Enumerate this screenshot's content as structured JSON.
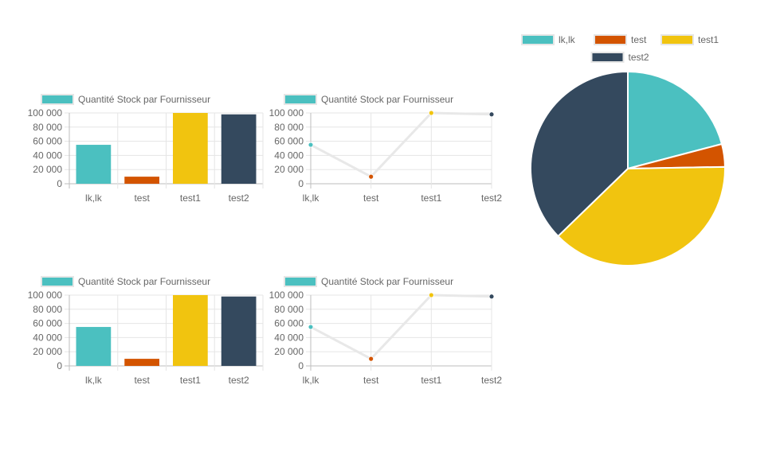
{
  "chart_data": [
    {
      "type": "bar",
      "categories": [
        "lk,lk",
        "test",
        "test1",
        "test2"
      ],
      "series": [
        {
          "name": "Quantité Stock par Fournisseur",
          "values": [
            55000,
            10000,
            100000,
            98000
          ]
        }
      ],
      "colors": [
        "#4bc0c0",
        "#d35400",
        "#f1c40f",
        "#34495e"
      ],
      "legend_color": "#4bc0c0",
      "ylim": [
        0,
        100000
      ],
      "yticks": [
        "0",
        "20 000",
        "40 000",
        "60 000",
        "80 000",
        "100 000"
      ],
      "legend_position": "top",
      "grid": true
    },
    {
      "type": "line",
      "categories": [
        "lk,lk",
        "test",
        "test1",
        "test2"
      ],
      "series": [
        {
          "name": "Quantité Stock par Fournisseur",
          "values": [
            55000,
            10000,
            100000,
            98000
          ]
        }
      ],
      "colors": [
        "#4bc0c0",
        "#d35400",
        "#f1c40f",
        "#34495e"
      ],
      "legend_color": "#4bc0c0",
      "line_color": "#e8e8e8",
      "ylim": [
        0,
        100000
      ],
      "yticks": [
        "0",
        "20 000",
        "40 000",
        "60 000",
        "80 000",
        "100 000"
      ],
      "legend_position": "top",
      "grid": true
    },
    {
      "type": "pie",
      "categories": [
        "lk,lk",
        "test",
        "test1",
        "test2"
      ],
      "values": [
        55000,
        10000,
        100000,
        98000
      ],
      "colors": [
        "#4bc0c0",
        "#d35400",
        "#f1c40f",
        "#34495e"
      ],
      "legend_position": "top"
    },
    {
      "type": "bar",
      "categories": [
        "lk,lk",
        "test",
        "test1",
        "test2"
      ],
      "series": [
        {
          "name": "Quantité Stock par Fournisseur",
          "values": [
            55000,
            10000,
            100000,
            98000
          ]
        }
      ],
      "colors": [
        "#4bc0c0",
        "#d35400",
        "#f1c40f",
        "#34495e"
      ],
      "legend_color": "#4bc0c0",
      "ylim": [
        0,
        100000
      ],
      "yticks": [
        "0",
        "20 000",
        "40 000",
        "60 000",
        "80 000",
        "100 000"
      ],
      "legend_position": "top",
      "grid": true
    },
    {
      "type": "line",
      "categories": [
        "lk,lk",
        "test",
        "test1",
        "test2"
      ],
      "series": [
        {
          "name": "Quantité Stock par Fournisseur",
          "values": [
            55000,
            10000,
            100000,
            98000
          ]
        }
      ],
      "colors": [
        "#4bc0c0",
        "#d35400",
        "#f1c40f",
        "#34495e"
      ],
      "legend_color": "#4bc0c0",
      "line_color": "#e8e8e8",
      "ylim": [
        0,
        100000
      ],
      "yticks": [
        "0",
        "20 000",
        "40 000",
        "60 000",
        "80 000",
        "100 000"
      ],
      "legend_position": "top",
      "grid": true
    }
  ]
}
